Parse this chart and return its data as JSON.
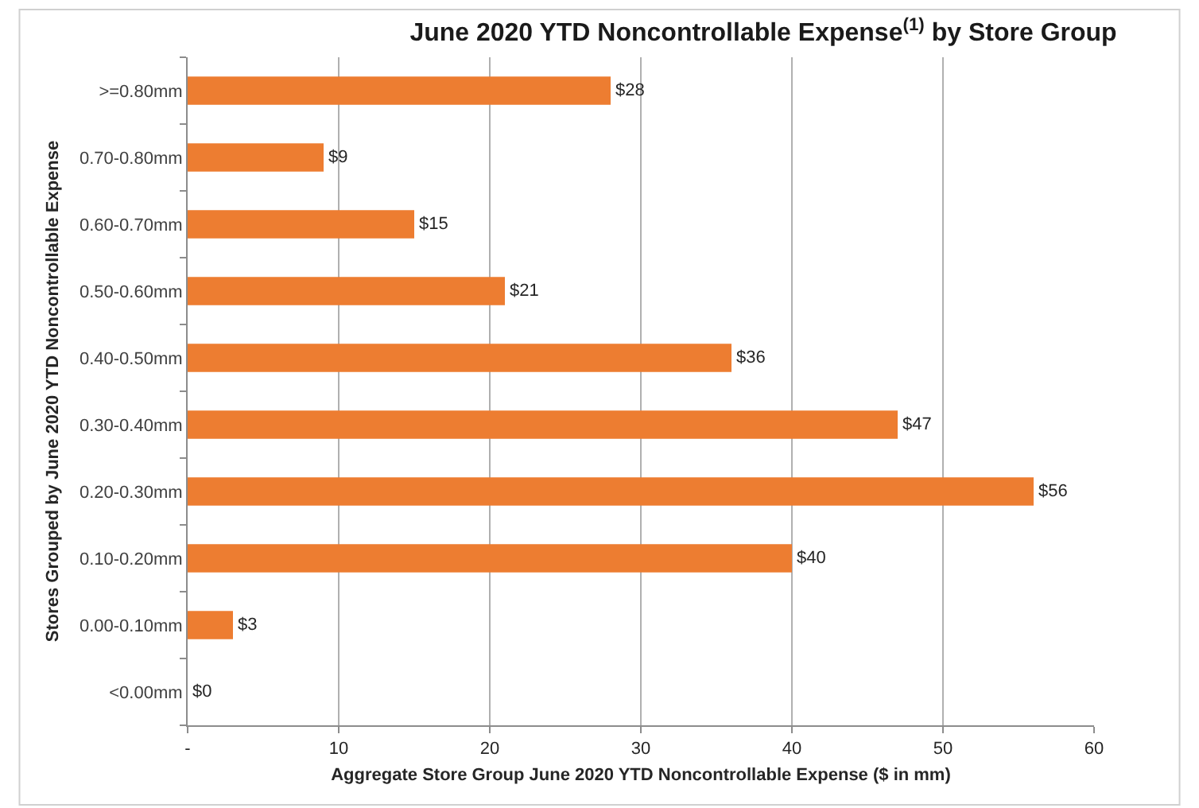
{
  "chart_data": {
    "type": "bar",
    "orientation": "horizontal",
    "title": "June 2020 YTD Noncontrollable Expense$^{(1)}$ by Store Group",
    "xlabel": "Aggregate Store Group June 2020 YTD Noncontrollable Expense ($ in mm)",
    "ylabel": "Stores Grouped by June 2020 YTD Noncontrollable Expense",
    "categories": [
      ">=0.80mm",
      "0.70-0.80mm",
      "0.60-0.70mm",
      "0.50-0.60mm",
      "0.40-0.50mm",
      "0.30-0.40mm",
      "0.20-0.30mm",
      "0.10-0.20mm",
      "0.00-0.10mm",
      "<0.00mm"
    ],
    "values": [
      28,
      9,
      15,
      21,
      36,
      47,
      56,
      40,
      3,
      0
    ],
    "value_labels": [
      "$28",
      "$9",
      "$15",
      "$21",
      "$36",
      "$47",
      "$56",
      "$40",
      "$3",
      "$0"
    ],
    "color": "#ed7d31",
    "xlim": [
      0,
      60
    ],
    "xticks": [
      {
        "value": 0,
        "label": "-"
      },
      10,
      20,
      30,
      40,
      50,
      60
    ],
    "grid": "x"
  }
}
